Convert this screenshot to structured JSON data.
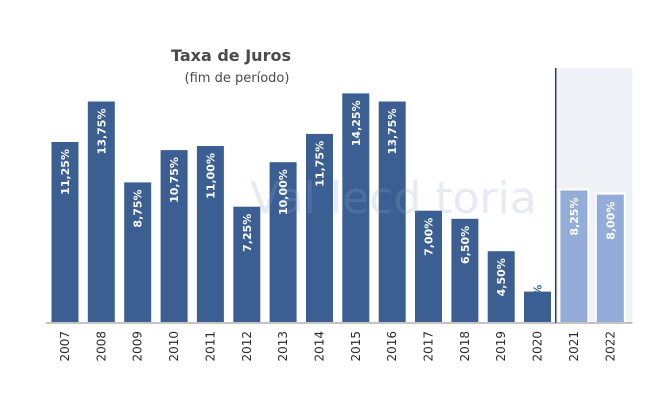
{
  "chart_data": {
    "type": "bar",
    "title": "Taxa de Juros",
    "subtitle": "(fim de período)",
    "xlabel": "",
    "ylabel": "",
    "ylim": [
      0,
      15
    ],
    "grid": false,
    "legend": "none",
    "categories": [
      "2007",
      "2008",
      "2009",
      "2010",
      "2011",
      "2012",
      "2013",
      "2014",
      "2015",
      "2016",
      "2017",
      "2018",
      "2019",
      "2020",
      "2021",
      "2022"
    ],
    "values": [
      11.25,
      13.75,
      8.75,
      10.75,
      11.0,
      7.25,
      10.0,
      11.75,
      14.25,
      13.75,
      7.0,
      6.5,
      4.5,
      2.0,
      8.25,
      8.0
    ],
    "data_labels": [
      "11,25%",
      "13,75%",
      "8,75%",
      "10,75%",
      "11,00%",
      "7,25%",
      "10,00%",
      "11,75%",
      "14,25%",
      "13,75%",
      "7,00%",
      "6,50%",
      "4,50%",
      "2,00%",
      "8,25%",
      "8,00%"
    ],
    "projection_categories": [
      "2021",
      "2022"
    ],
    "colors": {
      "actual": "#3b5f93",
      "projection": "#93acd8",
      "projection_background": "#eef1f5",
      "divider": "#2f3b4c",
      "axis": "#888888"
    }
  },
  "watermark": "Val   lecd   toria"
}
